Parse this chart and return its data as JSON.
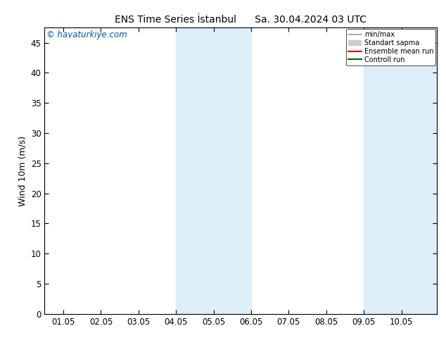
{
  "title": "ENS Time Series İstanbul      Sa. 30.04.2024 03 UTC",
  "ylabel": "Wind 10m (m/s)",
  "watermark": "© havaturkiye.com",
  "x_tick_labels": [
    "01.05",
    "02.05",
    "03.05",
    "04.05",
    "05.05",
    "06.05",
    "07.05",
    "08.05",
    "09.05",
    "10.05"
  ],
  "ylim": [
    0,
    47.5
  ],
  "yticks": [
    0,
    5,
    10,
    15,
    20,
    25,
    30,
    35,
    40,
    45
  ],
  "shade_bands": [
    {
      "xstart": 3.0,
      "xend": 5.0
    },
    {
      "xstart": 8.0,
      "xend": 9.95
    }
  ],
  "shade_color": "#deeef8",
  "background_color": "#ffffff",
  "legend_items": [
    {
      "label": "min/max",
      "color": "#999999",
      "lw": 1.2
    },
    {
      "label": "Standart sapma",
      "color": "#cccccc",
      "lw": 6
    },
    {
      "label": "Ensemble mean run",
      "color": "#dd0000",
      "lw": 1.5
    },
    {
      "label": "Controll run",
      "color": "#006600",
      "lw": 1.5
    }
  ],
  "title_fontsize": 10,
  "tick_fontsize": 8.5,
  "ylabel_fontsize": 9,
  "watermark_fontsize": 8.5,
  "watermark_color": "#0055aa"
}
